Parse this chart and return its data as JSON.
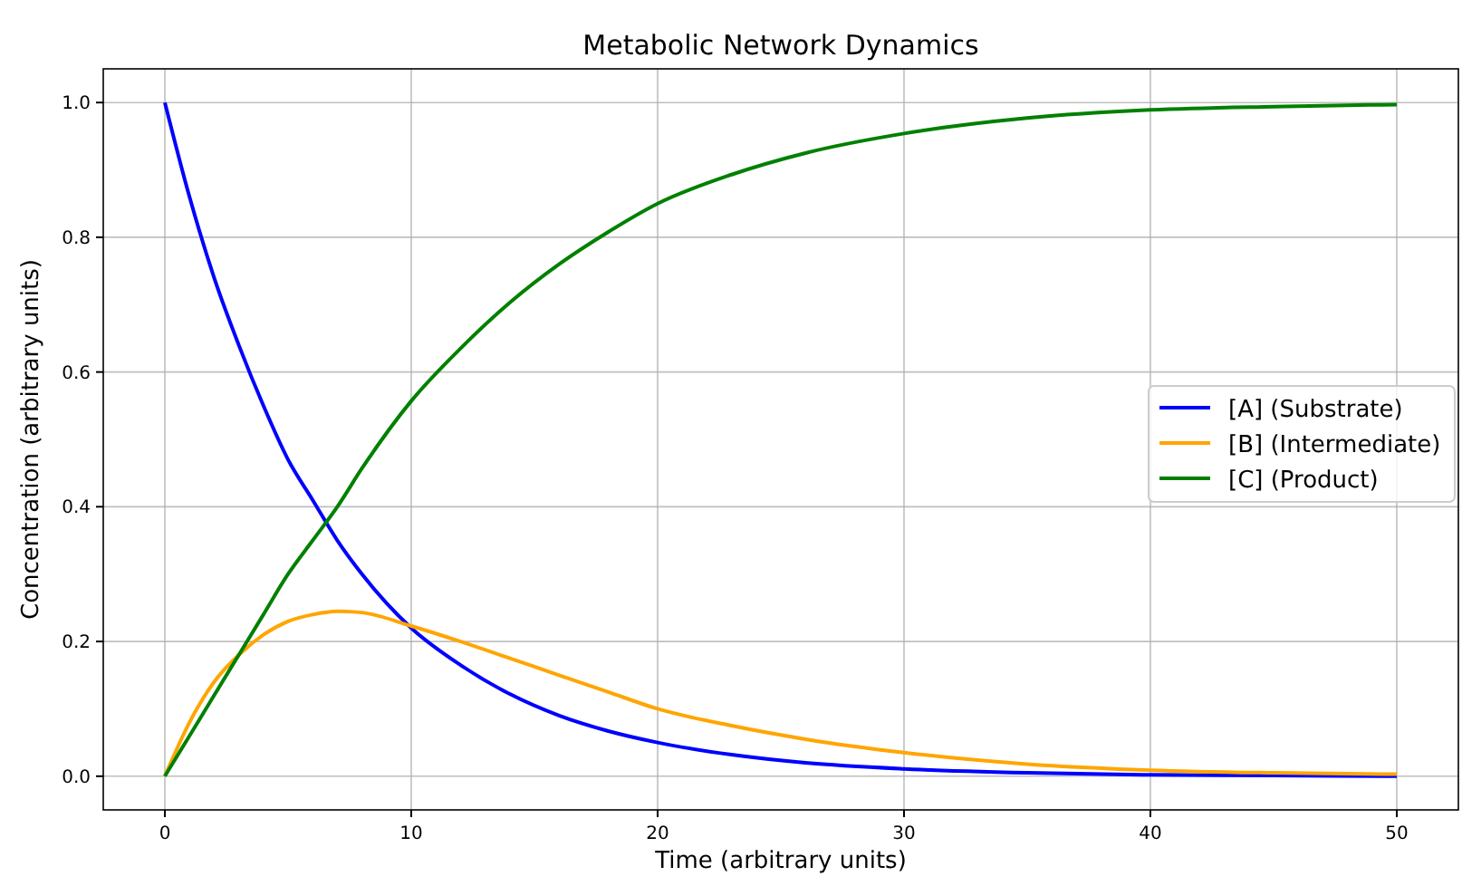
{
  "chart_data": {
    "type": "line",
    "title": "Metabolic Network Dynamics",
    "xlabel": "Time (arbitrary units)",
    "ylabel": "Concentration (arbitrary units)",
    "x": [
      0,
      1,
      2,
      3,
      4,
      5,
      6,
      7,
      8,
      10,
      12,
      14,
      16,
      18,
      20,
      23,
      26,
      30,
      35,
      40,
      45,
      50
    ],
    "series": [
      {
        "name": "[A] (Substrate)",
        "color": "#0000ff",
        "values": [
          1,
          0.86,
          0.74,
          0.64,
          0.55,
          0.47,
          0.41,
          0.35,
          0.3,
          0.22,
          0.165,
          0.122,
          0.09,
          0.067,
          0.05,
          0.032,
          0.02,
          0.011,
          0.005,
          0.002,
          0.001,
          0
        ]
      },
      {
        "name": "[B] (Intermediate)",
        "color": "#ffa500",
        "values": [
          0,
          0.08,
          0.14,
          0.18,
          0.21,
          0.23,
          0.24,
          0.245,
          0.243,
          0.223,
          0.2,
          0.175,
          0.15,
          0.125,
          0.1,
          0.075,
          0.055,
          0.035,
          0.018,
          0.009,
          0.005,
          0.003
        ]
      },
      {
        "name": "[C] (Product)",
        "color": "#008000",
        "values": [
          0,
          0.06,
          0.12,
          0.18,
          0.24,
          0.3,
          0.35,
          0.4,
          0.457,
          0.557,
          0.635,
          0.703,
          0.76,
          0.808,
          0.85,
          0.893,
          0.925,
          0.954,
          0.977,
          0.989,
          0.994,
          0.997
        ]
      }
    ],
    "xlim": [
      -2.5,
      52.5
    ],
    "xticks": [
      0,
      10,
      20,
      30,
      40,
      50
    ],
    "ylim": [
      -0.05,
      1.05
    ],
    "yticks": [
      {
        "value": 0,
        "label": "0.0"
      },
      {
        "value": 0.2,
        "label": "0.2"
      },
      {
        "value": 0.4,
        "label": "0.4"
      },
      {
        "value": 0.6,
        "label": "0.6"
      },
      {
        "value": 0.8,
        "label": "0.8"
      },
      {
        "value": 1,
        "label": "1.0"
      }
    ],
    "grid": true,
    "legend": "right",
    "line_style": "solid",
    "marker": "none"
  }
}
